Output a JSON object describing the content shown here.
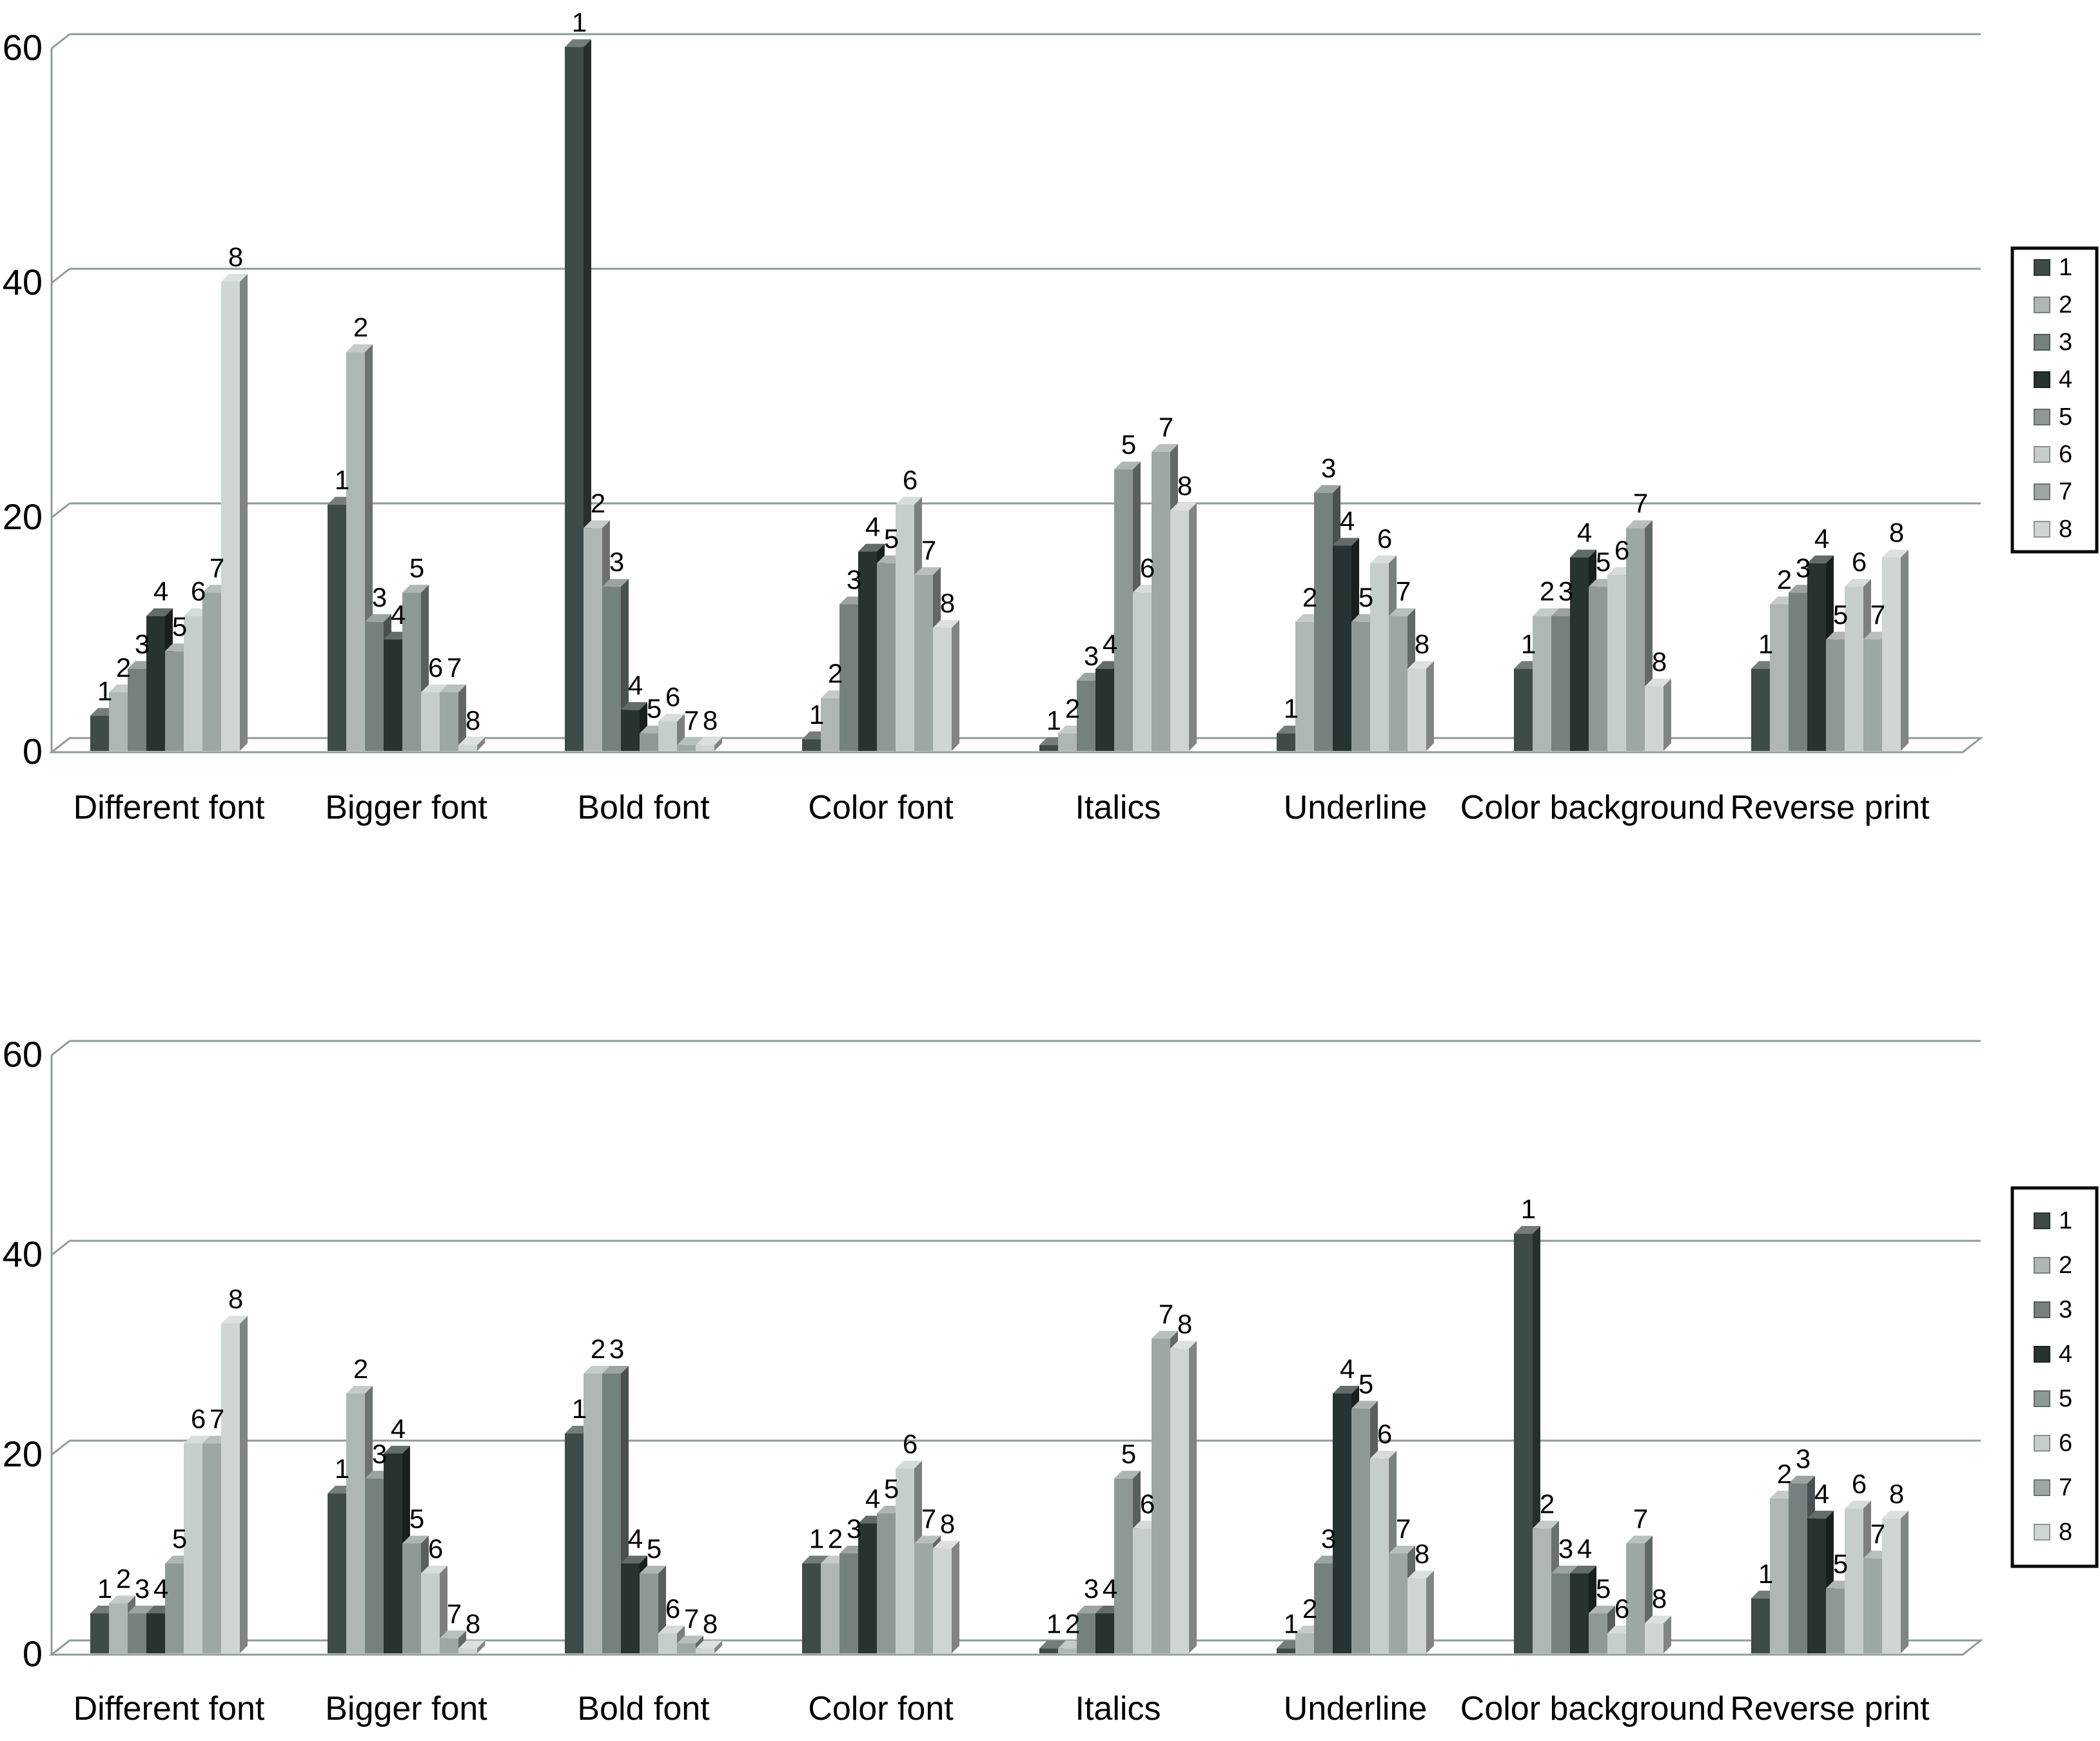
{
  "figure": {
    "background": "#ffffff",
    "grid_color": "#8c9c99",
    "text_color": "#000000",
    "legend_border_color": "#0a0a0a",
    "series_colors": [
      "#3e4b49",
      "#aeb7b4",
      "#75817f",
      "#263331",
      "#8e9996",
      "#c6cecb",
      "#9da7a4",
      "#ced5d2"
    ]
  },
  "legend": {
    "entries": [
      "1",
      "2",
      "3",
      "4",
      "5",
      "6",
      "7",
      "8"
    ]
  },
  "chart_data": [
    {
      "type": "bar",
      "projection": "3d",
      "position": "top",
      "title": "",
      "xlabel": "",
      "ylabel": "",
      "ylim": [
        0,
        60
      ],
      "yticks": [
        0,
        20,
        40,
        60
      ],
      "grid": true,
      "legend_position": "right",
      "categories": [
        "Different font",
        "Bigger font",
        "Bold font",
        "Color font",
        "Italics",
        "Underline",
        "Color background",
        "Reverse print"
      ],
      "series": [
        {
          "name": "1",
          "values": [
            3,
            21,
            60,
            1,
            0.5,
            1.5,
            7,
            7
          ]
        },
        {
          "name": "2",
          "values": [
            5,
            34,
            19,
            4.5,
            1.5,
            11,
            11.5,
            12.5
          ]
        },
        {
          "name": "3",
          "values": [
            7,
            11,
            14,
            12.5,
            6,
            22,
            11.5,
            13.5
          ]
        },
        {
          "name": "4",
          "values": [
            11.5,
            9.5,
            3.5,
            17,
            7,
            17.5,
            16.5,
            16
          ]
        },
        {
          "name": "5",
          "values": [
            8.5,
            13.5,
            1.5,
            16,
            24,
            11,
            14,
            9.5
          ]
        },
        {
          "name": "6",
          "values": [
            11.5,
            5,
            2.5,
            21,
            13.5,
            16,
            15,
            14
          ]
        },
        {
          "name": "7",
          "values": [
            13.5,
            5,
            0.5,
            15,
            25.5,
            11.5,
            19,
            9.5
          ]
        },
        {
          "name": "8",
          "values": [
            40,
            0.5,
            0.5,
            10.5,
            20.5,
            7,
            5.5,
            16.5
          ]
        }
      ]
    },
    {
      "type": "bar",
      "projection": "3d",
      "position": "bottom",
      "title": "",
      "xlabel": "",
      "ylabel": "",
      "ylim": [
        0,
        60
      ],
      "yticks": [
        0,
        20,
        40,
        60
      ],
      "grid": true,
      "legend_position": "right",
      "categories": [
        "Different font",
        "Bigger font",
        "Bold font",
        "Color font",
        "Italics",
        "Underline",
        "Color background",
        "Reverse print"
      ],
      "series": [
        {
          "name": "1",
          "values": [
            4,
            16,
            22,
            9,
            0.5,
            0.5,
            42,
            5.5
          ]
        },
        {
          "name": "2",
          "values": [
            5,
            26,
            28,
            9,
            0.5,
            2,
            12.5,
            15.5
          ]
        },
        {
          "name": "3",
          "values": [
            4,
            17.5,
            28,
            10,
            4,
            9,
            8,
            17
          ]
        },
        {
          "name": "4",
          "values": [
            4,
            20,
            9,
            13,
            4,
            26,
            8,
            13.5
          ]
        },
        {
          "name": "5",
          "values": [
            9,
            11,
            8,
            14,
            17.5,
            24.5,
            4,
            6.5
          ]
        },
        {
          "name": "6",
          "values": [
            21,
            8,
            2,
            18.5,
            12.5,
            19.5,
            2,
            14.5
          ]
        },
        {
          "name": "7",
          "values": [
            21,
            1.5,
            1,
            11,
            31.5,
            10,
            11,
            9.5
          ]
        },
        {
          "name": "8",
          "values": [
            33,
            0.5,
            0.5,
            10.5,
            30.5,
            7.5,
            3,
            13.5
          ]
        }
      ]
    }
  ]
}
